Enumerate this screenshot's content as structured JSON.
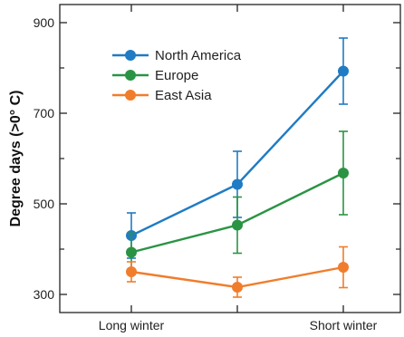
{
  "chart_data": {
    "type": "line",
    "title": "",
    "xlabel": "",
    "ylabel": "Degree days (>0° C)",
    "categories": [
      "Long winter",
      "",
      "Short winter"
    ],
    "ylim": [
      260,
      940
    ],
    "yticks": [
      300,
      500,
      700,
      900
    ],
    "yticks_minor": [
      400,
      600,
      800
    ],
    "grid": false,
    "legend_position": "top-left",
    "series": [
      {
        "name": "North America",
        "color": "#1f7bc4",
        "values": [
          430,
          543,
          793
        ],
        "err": [
          50,
          73,
          73
        ]
      },
      {
        "name": "Europe",
        "color": "#2a9444",
        "values": [
          393,
          453,
          568
        ],
        "err": [
          42,
          62,
          92
        ]
      },
      {
        "name": "East Asia",
        "color": "#f07d2c",
        "values": [
          350,
          316,
          360
        ],
        "err": [
          22,
          22,
          45
        ]
      }
    ]
  }
}
